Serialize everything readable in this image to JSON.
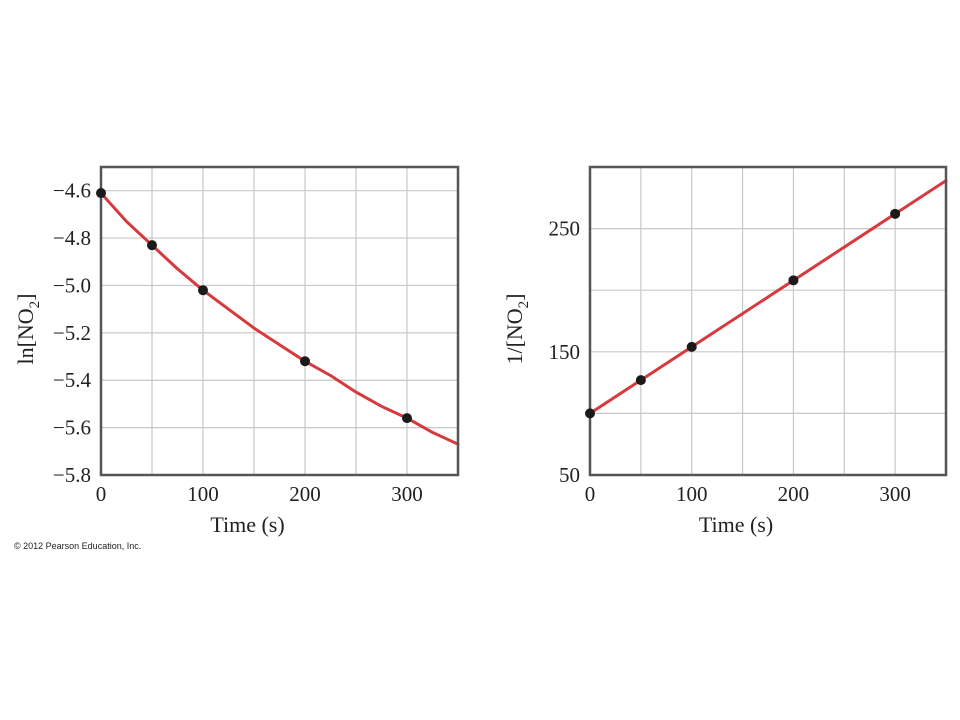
{
  "copyright": "© 2012 Pearson Education, Inc.",
  "colors": {
    "curve": "#d63a3f",
    "points": "#1a1a1a",
    "grid": "#c8c8c8",
    "frame": "#555555"
  },
  "chart_data": [
    {
      "type": "line",
      "title": "",
      "xlabel": "Time (s)",
      "ylabel": {
        "prefix": "ln[NO",
        "subscript": "2",
        "suffix": "]"
      },
      "xlim": [
        0,
        350
      ],
      "ylim": [
        -5.8,
        -4.5
      ],
      "xticks": [
        0,
        50,
        100,
        150,
        200,
        250,
        300,
        350
      ],
      "xtick_labels": [
        {
          "value": 0,
          "label": "0"
        },
        {
          "value": 100,
          "label": "100"
        },
        {
          "value": 200,
          "label": "200"
        },
        {
          "value": 300,
          "label": "300"
        }
      ],
      "yticks": [
        -5.8,
        -5.6,
        -5.4,
        -5.2,
        -5.0,
        -4.8,
        -4.6
      ],
      "ytick_labels": [
        {
          "value": -4.6,
          "label": "−4.6"
        },
        {
          "value": -4.8,
          "label": "−4.8"
        },
        {
          "value": -5.0,
          "label": "−5.0"
        },
        {
          "value": -5.2,
          "label": "−5.2"
        },
        {
          "value": -5.4,
          "label": "−5.4"
        },
        {
          "value": -5.6,
          "label": "−5.6"
        },
        {
          "value": -5.8,
          "label": "−5.8"
        }
      ],
      "grid": true,
      "points": [
        {
          "x": 0,
          "y": -4.61
        },
        {
          "x": 50,
          "y": -4.83
        },
        {
          "x": 100,
          "y": -5.02
        },
        {
          "x": 200,
          "y": -5.32
        },
        {
          "x": 300,
          "y": -5.56
        }
      ],
      "curve": [
        {
          "x": 0,
          "y": -4.61
        },
        {
          "x": 25,
          "y": -4.73
        },
        {
          "x": 50,
          "y": -4.83
        },
        {
          "x": 75,
          "y": -4.93
        },
        {
          "x": 100,
          "y": -5.02
        },
        {
          "x": 125,
          "y": -5.1
        },
        {
          "x": 150,
          "y": -5.18
        },
        {
          "x": 175,
          "y": -5.25
        },
        {
          "x": 200,
          "y": -5.32
        },
        {
          "x": 225,
          "y": -5.38
        },
        {
          "x": 250,
          "y": -5.45
        },
        {
          "x": 275,
          "y": -5.51
        },
        {
          "x": 300,
          "y": -5.56
        },
        {
          "x": 325,
          "y": -5.62
        },
        {
          "x": 350,
          "y": -5.67
        }
      ]
    },
    {
      "type": "line",
      "title": "",
      "xlabel": "Time (s)",
      "ylabel": {
        "prefix": "1/[NO",
        "subscript": "2",
        "suffix": "]"
      },
      "xlim": [
        0,
        350
      ],
      "ylim": [
        50,
        300
      ],
      "xticks": [
        0,
        50,
        100,
        150,
        200,
        250,
        300,
        350
      ],
      "xtick_labels": [
        {
          "value": 0,
          "label": "0"
        },
        {
          "value": 100,
          "label": "100"
        },
        {
          "value": 200,
          "label": "200"
        },
        {
          "value": 300,
          "label": "300"
        }
      ],
      "yticks": [
        50,
        100,
        150,
        200,
        250,
        300
      ],
      "ytick_labels": [
        {
          "value": 250,
          "label": "250"
        },
        {
          "value": 150,
          "label": "150"
        },
        {
          "value": 50,
          "label": "50"
        }
      ],
      "grid": true,
      "points": [
        {
          "x": 0,
          "y": 100
        },
        {
          "x": 50,
          "y": 127
        },
        {
          "x": 100,
          "y": 154
        },
        {
          "x": 200,
          "y": 208
        },
        {
          "x": 300,
          "y": 262
        }
      ],
      "curve": [
        {
          "x": 0,
          "y": 100
        },
        {
          "x": 350,
          "y": 289
        }
      ]
    }
  ]
}
